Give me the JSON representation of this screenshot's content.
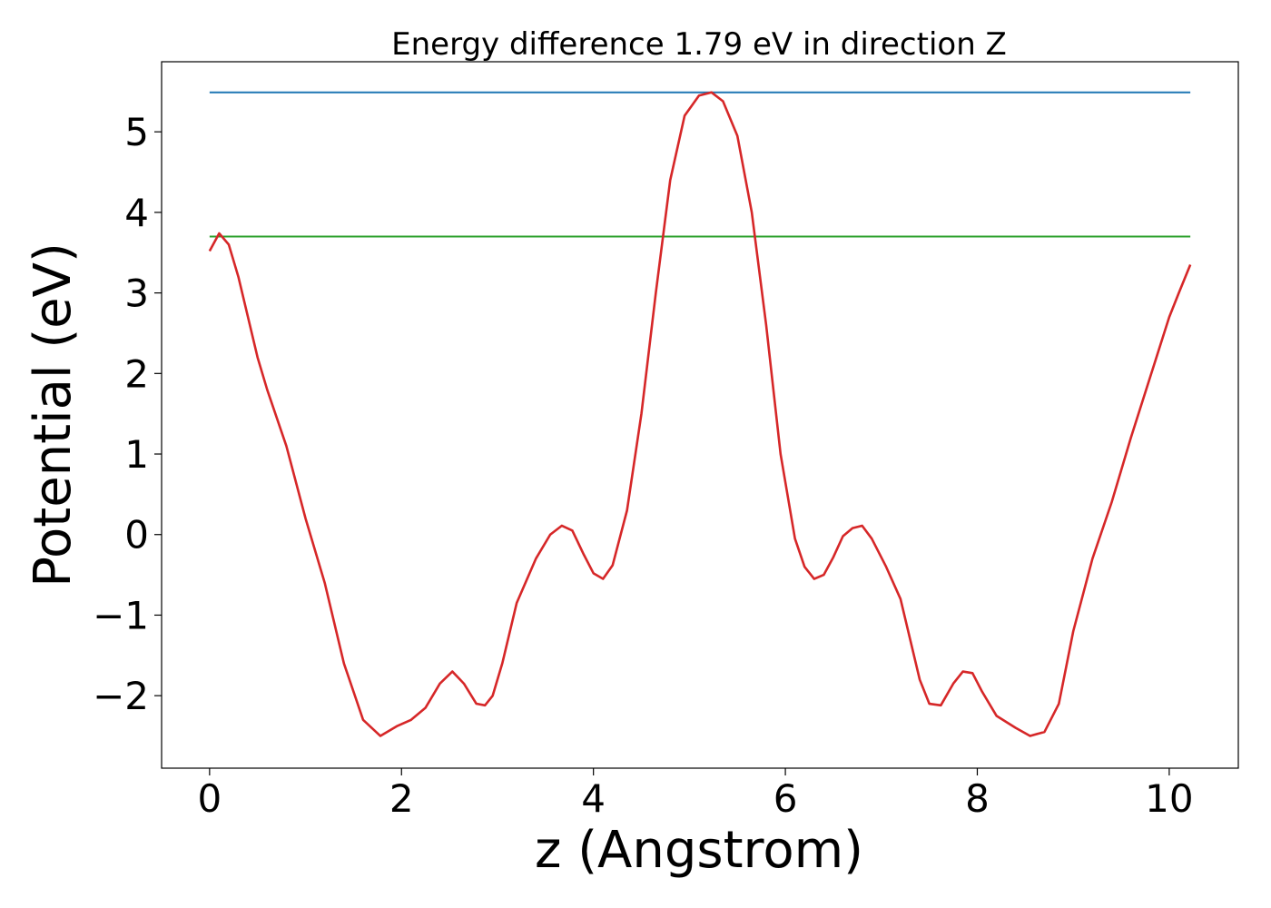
{
  "chart_data": {
    "type": "line",
    "title": "Energy difference 1.79 eV in direction Z",
    "xlabel": "z (Angstrom)",
    "ylabel": "Potential (eV)",
    "xlim": [
      -0.5,
      10.72
    ],
    "ylim": [
      -2.9,
      5.87
    ],
    "xticks": [
      0,
      2,
      4,
      6,
      8,
      10
    ],
    "xtick_labels": [
      "0",
      "2",
      "4",
      "6",
      "8",
      "10"
    ],
    "yticks": [
      -2,
      -1,
      0,
      1,
      2,
      3,
      4,
      5
    ],
    "ytick_labels": [
      "−2",
      "−1",
      "0",
      "1",
      "2",
      "3",
      "4",
      "5"
    ],
    "grid": false,
    "series": [
      {
        "color": "#1f77b4",
        "x": [
          0,
          10.22
        ],
        "y": [
          5.49,
          5.49
        ]
      },
      {
        "color": "#2ca02c",
        "x": [
          0,
          10.22
        ],
        "y": [
          3.7,
          3.7
        ]
      },
      {
        "color": "#d62728",
        "x": [
          0,
          0.1,
          0.2,
          0.3,
          0.4,
          0.5,
          0.6,
          0.8,
          1.0,
          1.2,
          1.4,
          1.6,
          1.78,
          1.95,
          2.1,
          2.25,
          2.4,
          2.53,
          2.65,
          2.78,
          2.87,
          2.95,
          3.05,
          3.2,
          3.4,
          3.55,
          3.67,
          3.78,
          3.9,
          4.0,
          4.1,
          4.2,
          4.35,
          4.5,
          4.65,
          4.8,
          4.95,
          5.1,
          5.23,
          5.35,
          5.5,
          5.65,
          5.8,
          5.95,
          6.1,
          6.2,
          6.3,
          6.4,
          6.5,
          6.6,
          6.7,
          6.8,
          6.9,
          7.05,
          7.2,
          7.4,
          7.5,
          7.62,
          7.75,
          7.85,
          7.95,
          8.05,
          8.2,
          8.4,
          8.55,
          8.7,
          8.85,
          9.0,
          9.2,
          9.4,
          9.6,
          9.8,
          10.0,
          10.1,
          10.22
        ],
        "y": [
          3.52,
          3.74,
          3.6,
          3.2,
          2.7,
          2.2,
          1.8,
          1.1,
          0.2,
          -0.6,
          -1.6,
          -2.3,
          -2.5,
          -2.38,
          -2.3,
          -2.15,
          -1.85,
          -1.7,
          -1.85,
          -2.1,
          -2.12,
          -2.0,
          -1.6,
          -0.85,
          -0.3,
          0.0,
          0.11,
          0.05,
          -0.25,
          -0.48,
          -0.55,
          -0.38,
          0.3,
          1.5,
          3.0,
          4.4,
          5.2,
          5.45,
          5.49,
          5.38,
          4.95,
          4.0,
          2.6,
          1.0,
          -0.05,
          -0.4,
          -0.55,
          -0.5,
          -0.28,
          -0.02,
          0.08,
          0.11,
          -0.05,
          -0.4,
          -0.8,
          -1.8,
          -2.1,
          -2.12,
          -1.85,
          -1.7,
          -1.72,
          -1.95,
          -2.25,
          -2.4,
          -2.5,
          -2.45,
          -2.1,
          -1.2,
          -0.3,
          0.4,
          1.2,
          1.95,
          2.7,
          3.0,
          3.35
        ]
      }
    ]
  }
}
